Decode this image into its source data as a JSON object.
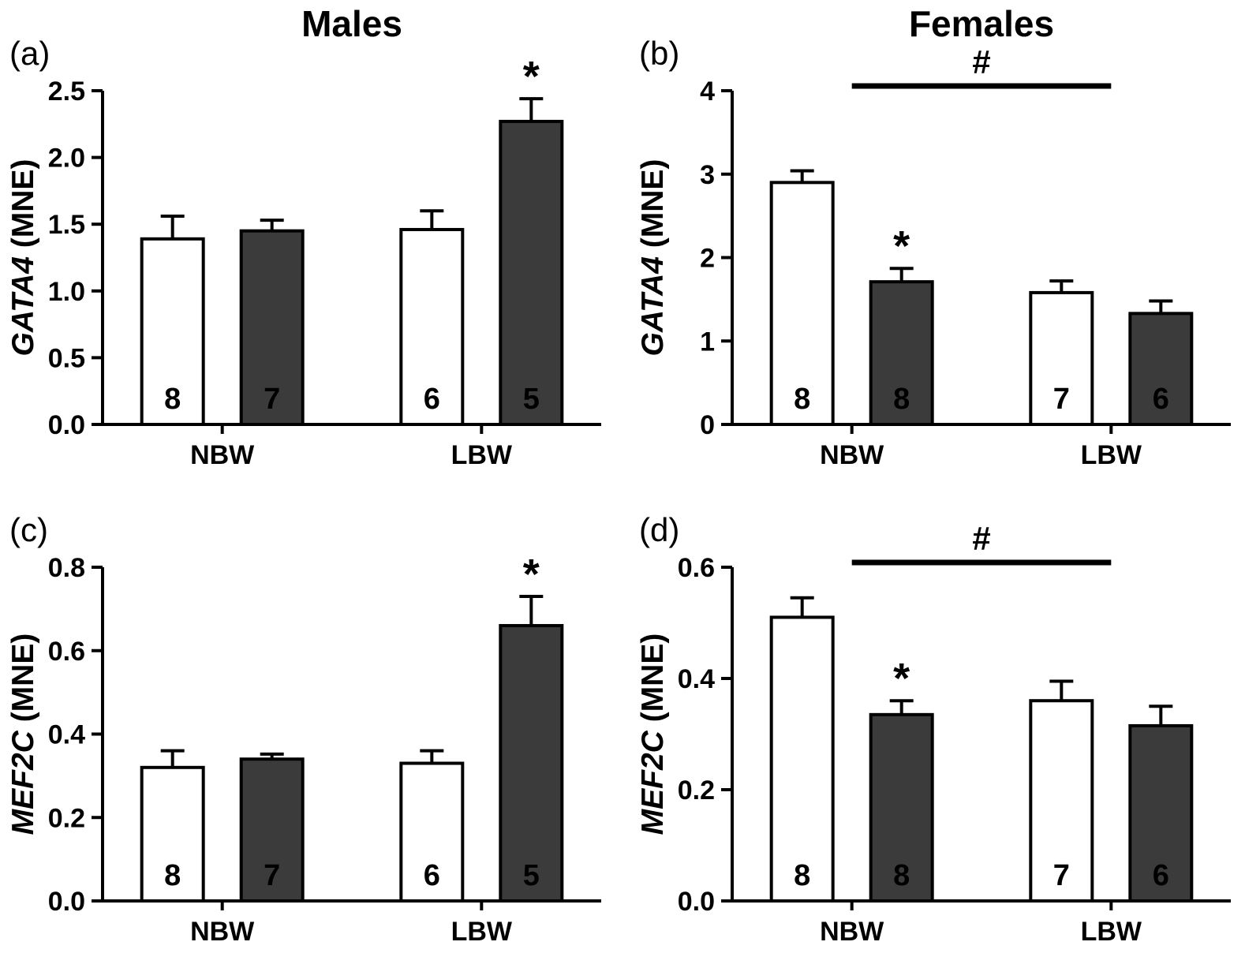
{
  "figure": {
    "background": "#ffffff",
    "axis_color": "#000000",
    "open_bar_fill": "#ffffff",
    "filled_bar_fill": "#3b3b3b",
    "column_titles": [
      "Males",
      "Females"
    ],
    "panel_letters": [
      "(a)",
      "(b)",
      "(c)",
      "(d)"
    ]
  },
  "chart_data": [
    {
      "type": "bar",
      "panel": "(a)",
      "title": "Males",
      "ylabel": "GATA4 (MNE)",
      "ylabel_italic": "GATA4",
      "ylabel_plain": " (MNE)",
      "ylim": [
        0,
        2.5
      ],
      "yticks": [
        "0.0",
        "0.5",
        "1.0",
        "1.5",
        "2.0",
        "2.5"
      ],
      "categories": [
        "NBW",
        "LBW"
      ],
      "series": [
        {
          "name": "open-bar",
          "fill": "#ffffff",
          "label_color": "#000000",
          "values": [
            1.39,
            1.46
          ],
          "errors": [
            0.17,
            0.14
          ],
          "n": [
            8,
            6
          ]
        },
        {
          "name": "filled-bar",
          "fill": "#3b3b3b",
          "label_color": "#ffffff",
          "values": [
            1.45,
            2.27
          ],
          "errors": [
            0.08,
            0.17
          ],
          "n": [
            7,
            5
          ]
        }
      ],
      "sig_stars": [
        {
          "series": 1,
          "category": 1,
          "symbol": "*"
        }
      ],
      "hash": null
    },
    {
      "type": "bar",
      "panel": "(b)",
      "title": "Females",
      "ylabel": "GATA4 (MNE)",
      "ylabel_italic": "GATA4",
      "ylabel_plain": " (MNE)",
      "ylim": [
        0,
        4
      ],
      "yticks": [
        "0",
        "1",
        "2",
        "3",
        "4"
      ],
      "categories": [
        "NBW",
        "LBW"
      ],
      "series": [
        {
          "name": "open-bar",
          "fill": "#ffffff",
          "label_color": "#000000",
          "values": [
            2.9,
            1.58
          ],
          "errors": [
            0.14,
            0.14
          ],
          "n": [
            8,
            7
          ]
        },
        {
          "name": "filled-bar",
          "fill": "#3b3b3b",
          "label_color": "#ffffff",
          "values": [
            1.71,
            1.33
          ],
          "errors": [
            0.16,
            0.15
          ],
          "n": [
            8,
            6
          ]
        }
      ],
      "sig_stars": [
        {
          "series": 1,
          "category": 0,
          "symbol": "*"
        }
      ],
      "hash": {
        "symbol": "#"
      }
    },
    {
      "type": "bar",
      "panel": "(c)",
      "title": "",
      "ylabel": "MEF2C (MNE)",
      "ylabel_italic": "MEF2C",
      "ylabel_plain": " (MNE)",
      "ylim": [
        0,
        0.8
      ],
      "yticks": [
        "0.0",
        "0.2",
        "0.4",
        "0.6",
        "0.8"
      ],
      "categories": [
        "NBW",
        "LBW"
      ],
      "series": [
        {
          "name": "open-bar",
          "fill": "#ffffff",
          "label_color": "#000000",
          "values": [
            0.32,
            0.33
          ],
          "errors": [
            0.04,
            0.03
          ],
          "n": [
            8,
            6
          ]
        },
        {
          "name": "filled-bar",
          "fill": "#3b3b3b",
          "label_color": "#ffffff",
          "values": [
            0.34,
            0.66
          ],
          "errors": [
            0.012,
            0.07
          ],
          "n": [
            7,
            5
          ]
        }
      ],
      "sig_stars": [
        {
          "series": 1,
          "category": 1,
          "symbol": "*"
        }
      ],
      "hash": null
    },
    {
      "type": "bar",
      "panel": "(d)",
      "title": "",
      "ylabel": "MEF2C (MNE)",
      "ylabel_italic": "MEF2C",
      "ylabel_plain": " (MNE)",
      "ylim": [
        0,
        0.6
      ],
      "yticks": [
        "0.0",
        "0.2",
        "0.4",
        "0.6"
      ],
      "categories": [
        "NBW",
        "LBW"
      ],
      "series": [
        {
          "name": "open-bar",
          "fill": "#ffffff",
          "label_color": "#000000",
          "values": [
            0.51,
            0.36
          ],
          "errors": [
            0.035,
            0.035
          ],
          "n": [
            8,
            7
          ]
        },
        {
          "name": "filled-bar",
          "fill": "#3b3b3b",
          "label_color": "#ffffff",
          "values": [
            0.335,
            0.315
          ],
          "errors": [
            0.025,
            0.035
          ],
          "n": [
            8,
            6
          ]
        }
      ],
      "sig_stars": [
        {
          "series": 1,
          "category": 0,
          "symbol": "*"
        }
      ],
      "hash": {
        "symbol": "#"
      }
    }
  ]
}
